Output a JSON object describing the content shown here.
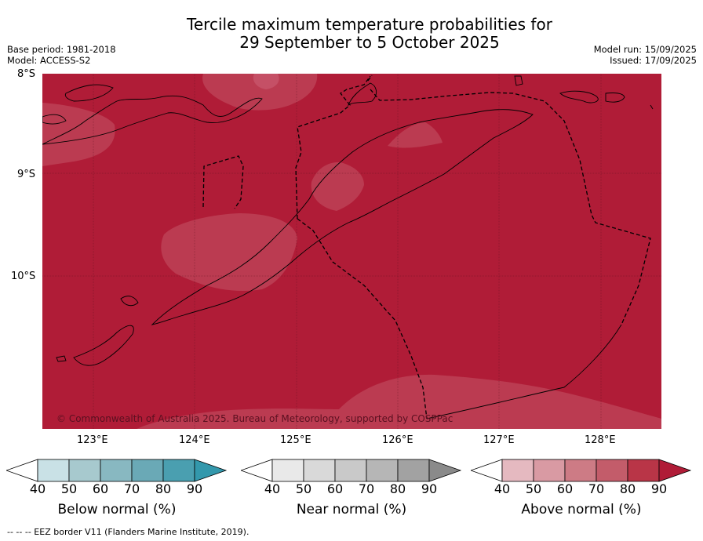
{
  "title": "Tercile maximum temperature probabilities for\n29 September to 5 October 2025",
  "meta_left": {
    "base_period": "Base period: 1981-2018",
    "model": "Model: ACCESS-S2"
  },
  "meta_right": {
    "model_run": "Model run: 15/09/2025",
    "issued": "Issued: 17/09/2025"
  },
  "latitude_labels": [
    "8°S",
    "9°S",
    "10°S"
  ],
  "longitude_labels": [
    "123°E",
    "124°E",
    "125°E",
    "126°E",
    "127°E",
    "128°E"
  ],
  "copyright": "© Commonwealth of Australia 2025. Bureau of Meteorology, supported by COSPPac",
  "colorbars": [
    {
      "label": "Below normal (%)",
      "ticks": [
        "40",
        "50",
        "60",
        "70",
        "80",
        "90"
      ],
      "colors": [
        "#ffffff",
        "#c9e1e6",
        "#a7c9ce",
        "#88b8c1",
        "#6aa9b6",
        "#4a9fb0",
        "#3398ac"
      ]
    },
    {
      "label": "Near normal (%)",
      "ticks": [
        "40",
        "50",
        "60",
        "70",
        "80",
        "90"
      ],
      "colors": [
        "#ffffff",
        "#e9e9e9",
        "#d9d9d9",
        "#c9c9c9",
        "#b6b6b6",
        "#a2a2a2",
        "#8a8a8a"
      ]
    },
    {
      "label": "Above normal (%)",
      "ticks": [
        "40",
        "50",
        "60",
        "70",
        "80",
        "90"
      ],
      "colors": [
        "#ffffff",
        "#e5b9c0",
        "#d99aa3",
        "#cd7b85",
        "#c35c6a",
        "#b93547",
        "#b01c37"
      ]
    }
  ],
  "map_colors": {
    "dominant": "#b01c37",
    "lighter": "#bb3b51",
    "lightest": "#c55066"
  },
  "footer": "--  --  -- EEZ border V11 (Flanders Marine Institute, 2019)."
}
